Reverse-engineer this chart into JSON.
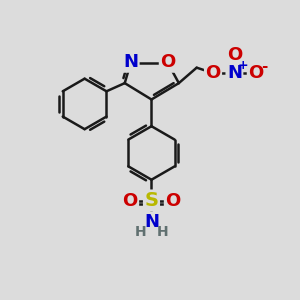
{
  "background_color": "#dcdcdc",
  "atom_colors": {
    "C": "#1a1a1a",
    "N": "#0000cc",
    "O": "#cc0000",
    "S": "#b8b800",
    "H": "#607070"
  },
  "bond_color": "#1a1a1a",
  "bond_width": 1.8,
  "font_size_atoms": 13,
  "font_size_small": 10,
  "figsize": [
    3.0,
    3.0
  ],
  "dpi": 100
}
